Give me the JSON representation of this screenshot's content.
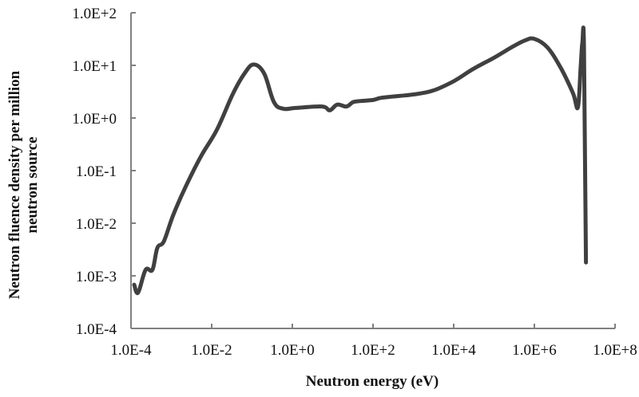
{
  "chart_data": {
    "type": "line",
    "title": "",
    "xlabel": "Neutron energy (eV)",
    "ylabel_lines": [
      "Neutron fluence density per million",
      "neutron source"
    ],
    "ylabel": "Neutron fluence density per million neutron source",
    "xscale": "log",
    "yscale": "log",
    "xlim": [
      0.0001,
      100000000
    ],
    "ylim": [
      0.0001,
      100
    ],
    "grid": false,
    "legend": null,
    "x_ticks": [
      "1.0E-4",
      "1.0E-2",
      "1.0E+0",
      "1.0E+2",
      "1.0E+4",
      "1.0E+6",
      "1.0E+8"
    ],
    "y_ticks": [
      "1.0E+2",
      "1.0E+1",
      "1.0E+0",
      "1.0E-1",
      "1.0E-2",
      "1.0E-3",
      "1.0E-4"
    ],
    "line_color": "#404040",
    "axis_color": "#808080",
    "series": [
      {
        "name": "Neutron fluence density",
        "x": [
          0.00012,
          0.00015,
          0.00023,
          0.00034,
          0.00045,
          0.00065,
          0.0011,
          0.0022,
          0.0055,
          0.0135,
          0.033,
          0.065,
          0.11,
          0.2,
          0.35,
          0.6,
          1.2,
          5.5,
          8.5,
          13,
          22,
          32,
          50,
          100,
          150,
          300,
          1000,
          3000,
          10000,
          30000,
          100000,
          300000,
          600000,
          1000000,
          2100000,
          4500000,
          9000000,
          12000000,
          14000000,
          15500000,
          17000000,
          19000000
        ],
        "y": [
          0.00068,
          0.00048,
          0.0013,
          0.0013,
          0.0034,
          0.0045,
          0.014,
          0.047,
          0.19,
          0.6,
          2.8,
          7.0,
          10.4,
          7.0,
          2.0,
          1.5,
          1.55,
          1.65,
          1.4,
          1.8,
          1.65,
          2.0,
          2.1,
          2.2,
          2.4,
          2.55,
          2.8,
          3.3,
          5.0,
          8.5,
          14,
          23,
          30,
          32,
          22,
          9.0,
          3.0,
          1.6,
          9.0,
          27,
          22,
          0.0018
        ]
      }
    ]
  }
}
